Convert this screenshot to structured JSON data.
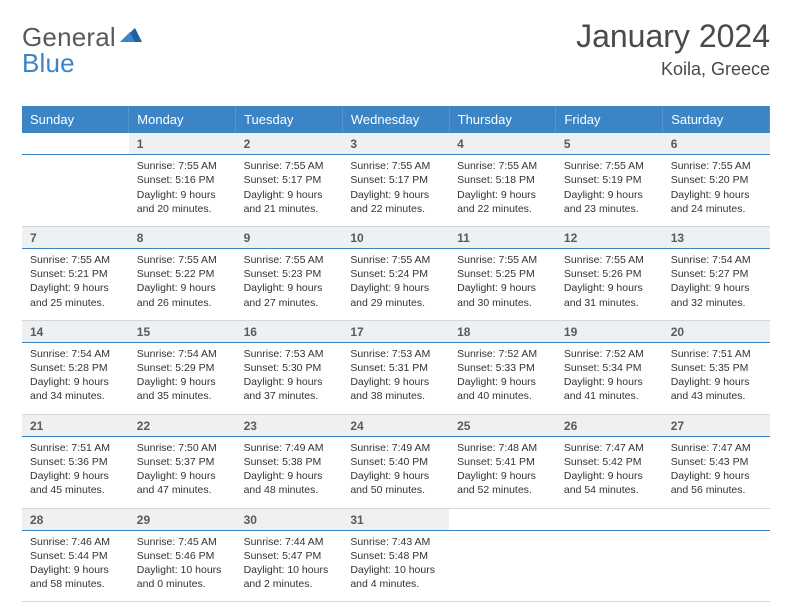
{
  "brand": {
    "word1": "General",
    "word2": "Blue",
    "accent": "#3b85c6",
    "text_color": "#5a5a5a"
  },
  "title": "January 2024",
  "location": "Koila, Greece",
  "header_bg": "#3b85c6",
  "header_fg": "#ffffff",
  "daynum_bg": "#eef0f2",
  "rule_color": "#3b85c6",
  "weekdays": [
    "Sunday",
    "Monday",
    "Tuesday",
    "Wednesday",
    "Thursday",
    "Friday",
    "Saturday"
  ],
  "weeks": [
    {
      "nums": [
        "",
        "1",
        "2",
        "3",
        "4",
        "5",
        "6"
      ],
      "details": [
        "",
        "Sunrise: 7:55 AM\nSunset: 5:16 PM\nDaylight: 9 hours and 20 minutes.",
        "Sunrise: 7:55 AM\nSunset: 5:17 PM\nDaylight: 9 hours and 21 minutes.",
        "Sunrise: 7:55 AM\nSunset: 5:17 PM\nDaylight: 9 hours and 22 minutes.",
        "Sunrise: 7:55 AM\nSunset: 5:18 PM\nDaylight: 9 hours and 22 minutes.",
        "Sunrise: 7:55 AM\nSunset: 5:19 PM\nDaylight: 9 hours and 23 minutes.",
        "Sunrise: 7:55 AM\nSunset: 5:20 PM\nDaylight: 9 hours and 24 minutes."
      ]
    },
    {
      "nums": [
        "7",
        "8",
        "9",
        "10",
        "11",
        "12",
        "13"
      ],
      "details": [
        "Sunrise: 7:55 AM\nSunset: 5:21 PM\nDaylight: 9 hours and 25 minutes.",
        "Sunrise: 7:55 AM\nSunset: 5:22 PM\nDaylight: 9 hours and 26 minutes.",
        "Sunrise: 7:55 AM\nSunset: 5:23 PM\nDaylight: 9 hours and 27 minutes.",
        "Sunrise: 7:55 AM\nSunset: 5:24 PM\nDaylight: 9 hours and 29 minutes.",
        "Sunrise: 7:55 AM\nSunset: 5:25 PM\nDaylight: 9 hours and 30 minutes.",
        "Sunrise: 7:55 AM\nSunset: 5:26 PM\nDaylight: 9 hours and 31 minutes.",
        "Sunrise: 7:54 AM\nSunset: 5:27 PM\nDaylight: 9 hours and 32 minutes."
      ]
    },
    {
      "nums": [
        "14",
        "15",
        "16",
        "17",
        "18",
        "19",
        "20"
      ],
      "details": [
        "Sunrise: 7:54 AM\nSunset: 5:28 PM\nDaylight: 9 hours and 34 minutes.",
        "Sunrise: 7:54 AM\nSunset: 5:29 PM\nDaylight: 9 hours and 35 minutes.",
        "Sunrise: 7:53 AM\nSunset: 5:30 PM\nDaylight: 9 hours and 37 minutes.",
        "Sunrise: 7:53 AM\nSunset: 5:31 PM\nDaylight: 9 hours and 38 minutes.",
        "Sunrise: 7:52 AM\nSunset: 5:33 PM\nDaylight: 9 hours and 40 minutes.",
        "Sunrise: 7:52 AM\nSunset: 5:34 PM\nDaylight: 9 hours and 41 minutes.",
        "Sunrise: 7:51 AM\nSunset: 5:35 PM\nDaylight: 9 hours and 43 minutes."
      ]
    },
    {
      "nums": [
        "21",
        "22",
        "23",
        "24",
        "25",
        "26",
        "27"
      ],
      "details": [
        "Sunrise: 7:51 AM\nSunset: 5:36 PM\nDaylight: 9 hours and 45 minutes.",
        "Sunrise: 7:50 AM\nSunset: 5:37 PM\nDaylight: 9 hours and 47 minutes.",
        "Sunrise: 7:49 AM\nSunset: 5:38 PM\nDaylight: 9 hours and 48 minutes.",
        "Sunrise: 7:49 AM\nSunset: 5:40 PM\nDaylight: 9 hours and 50 minutes.",
        "Sunrise: 7:48 AM\nSunset: 5:41 PM\nDaylight: 9 hours and 52 minutes.",
        "Sunrise: 7:47 AM\nSunset: 5:42 PM\nDaylight: 9 hours and 54 minutes.",
        "Sunrise: 7:47 AM\nSunset: 5:43 PM\nDaylight: 9 hours and 56 minutes."
      ]
    },
    {
      "nums": [
        "28",
        "29",
        "30",
        "31",
        "",
        "",
        ""
      ],
      "details": [
        "Sunrise: 7:46 AM\nSunset: 5:44 PM\nDaylight: 9 hours and 58 minutes.",
        "Sunrise: 7:45 AM\nSunset: 5:46 PM\nDaylight: 10 hours and 0 minutes.",
        "Sunrise: 7:44 AM\nSunset: 5:47 PM\nDaylight: 10 hours and 2 minutes.",
        "Sunrise: 7:43 AM\nSunset: 5:48 PM\nDaylight: 10 hours and 4 minutes.",
        "",
        "",
        ""
      ]
    }
  ]
}
